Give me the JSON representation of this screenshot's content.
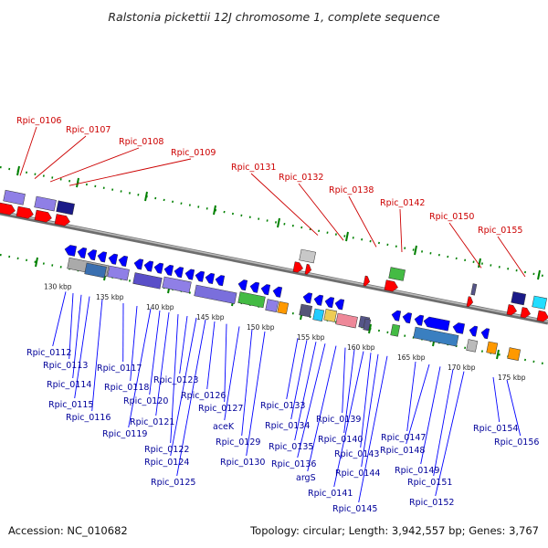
{
  "title": "Ralstonia pickettii 12J chromosome 1, complete sequence",
  "footer": {
    "accession": "Accession: NC_010682",
    "summary": "Topology: circular; Length: 3,942,557 bp; Genes: 3,767"
  },
  "scale_labels": [
    "130 kbp",
    "135 kbp",
    "140 kbp",
    "145 kbp",
    "150 kbp",
    "155 kbp",
    "160 kbp",
    "165 kbp",
    "170 kbp",
    "175 kbp"
  ],
  "top_genes": [
    "Rpic_0106",
    "Rpic_0107",
    "Rpic_0108",
    "Rpic_0109",
    "Rpic_0131",
    "Rpic_0132",
    "Rpic_0138",
    "Rpic_0142",
    "Rpic_0150",
    "Rpic_0155"
  ],
  "bottom_genes": [
    "Rpic_0112",
    "Rpic_0113",
    "Rpic_0114",
    "Rpic_0115",
    "Rpic_0116",
    "Rpic_0117",
    "Rpic_0118",
    "Rpic_0119",
    "Rpic_0120",
    "Rpic_0121",
    "Rpic_0122",
    "Rpic_0123",
    "Rpic_0124",
    "Rpic_0125",
    "Rpic_0126",
    "Rpic_0127",
    "aceK",
    "Rpic_0129",
    "Rpic_0130",
    "Rpic_0133",
    "Rpic_0134",
    "Rpic_0135",
    "Rpic_0136",
    "argS",
    "Rpic_0139",
    "Rpic_0140",
    "Rpic_0141",
    "Rpic_0143",
    "Rpic_0144",
    "Rpic_0145",
    "Rpic_0147",
    "Rpic_0148",
    "Rpic_0149",
    "Rpic_0151",
    "Rpic_0152",
    "Rpic_0154",
    "Rpic_0156"
  ],
  "colors": {
    "forward_cds": "#ff0000",
    "reverse_cds": "#0000ff",
    "top_label": "#cc0000",
    "bottom_label": "#000099",
    "tick": "#008000",
    "backbone": "#888888"
  }
}
